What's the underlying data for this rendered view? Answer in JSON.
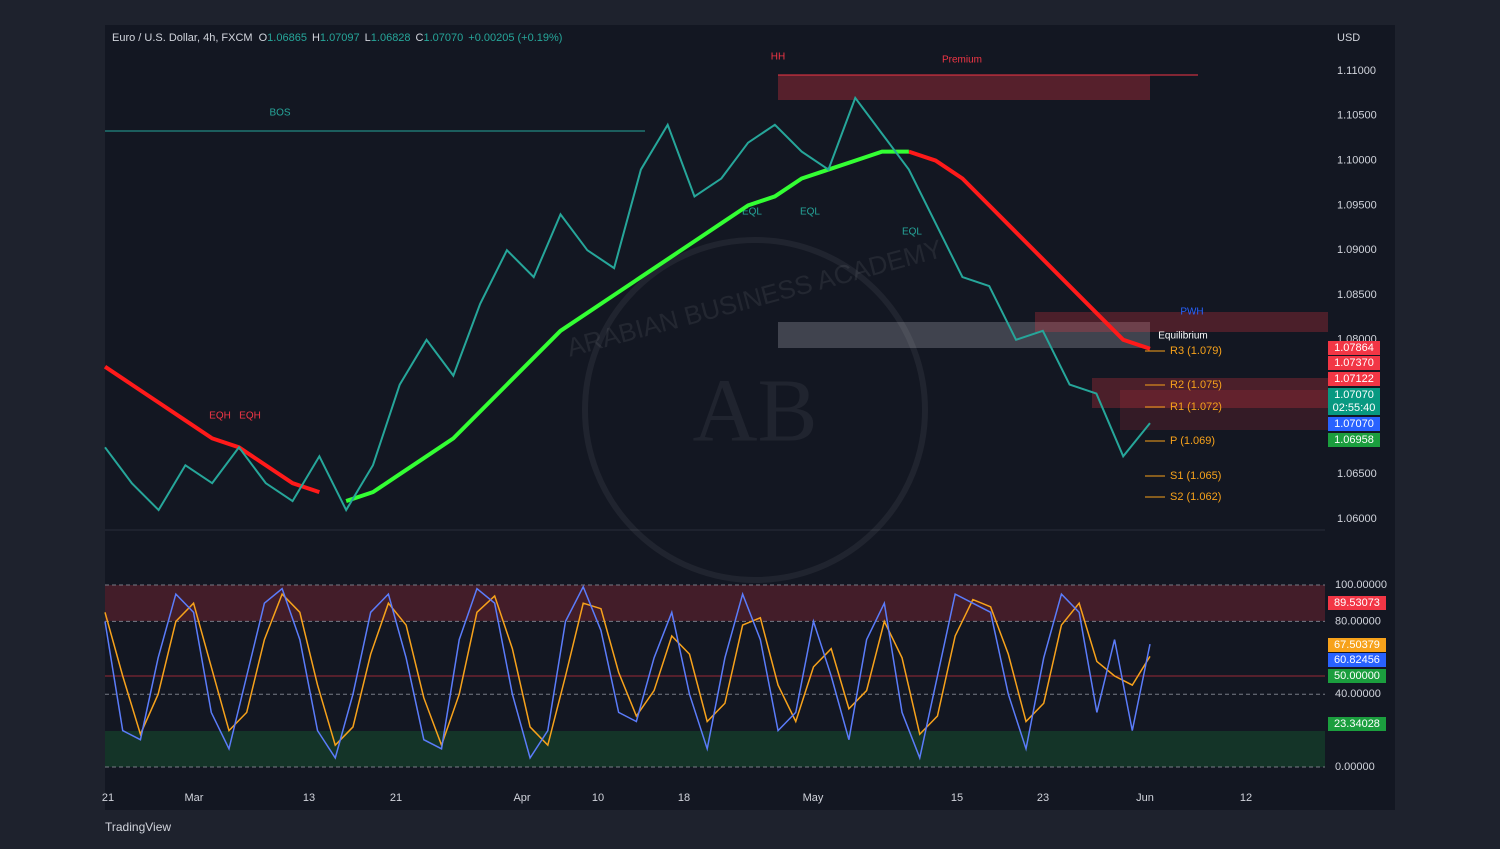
{
  "header": {
    "symbol": "Euro / U.S. Dollar, 4h, FXCM",
    "ohlc": [
      {
        "key": "O",
        "value": "1.06865"
      },
      {
        "key": "H",
        "value": "1.07097"
      },
      {
        "key": "L",
        "value": "1.06828"
      },
      {
        "key": "C",
        "value": "1.07070"
      }
    ],
    "change": "+0.00205 (+0.19%)"
  },
  "currency": "USD",
  "price_ticks": [
    "1.11000",
    "1.10500",
    "1.10000",
    "1.09500",
    "1.09000",
    "1.08500",
    "1.08000",
    "1.06500",
    "1.06000"
  ],
  "price_badges": [
    {
      "text": "1.07864",
      "color": "#f23645"
    },
    {
      "text": "1.07370",
      "color": "#f23645"
    },
    {
      "text": "1.07122",
      "color": "#f23645"
    },
    {
      "text": "1.07070",
      "color": "#089981"
    },
    {
      "text": "02:55:40",
      "color": "#089981"
    },
    {
      "text": "1.07070",
      "color": "#2962ff"
    },
    {
      "text": "1.06958",
      "color": "#1b9e3e"
    }
  ],
  "osc_ticks": [
    "100.00000",
    "80.00000",
    "40.00000",
    "0.00000"
  ],
  "osc_badges": [
    {
      "text": "89.53073",
      "color": "#f23645"
    },
    {
      "text": "67.50379",
      "color": "#f7a21b"
    },
    {
      "text": "60.82456",
      "color": "#2962ff"
    },
    {
      "text": "50.00000",
      "color": "#1b9e3e"
    },
    {
      "text": "23.34028",
      "color": "#1b9e3e"
    }
  ],
  "x_labels": [
    "21",
    "Mar",
    "13",
    "21",
    "Apr",
    "10",
    "18",
    "May",
    "15",
    "23",
    "Jun",
    "12"
  ],
  "annotations": [
    "HH",
    "Premium",
    "BOS",
    "EQH",
    "EQH",
    "EQL",
    "EQL",
    "EQL",
    "Equilibrium",
    "PWH"
  ],
  "pivots": [
    "R3 (1.079)",
    "R2 (1.075)",
    "R1 (1.072)",
    "P (1.069)",
    "S1 (1.065)",
    "S2 (1.062)"
  ],
  "watermark": {
    "initials": "AB",
    "name": "ARABIAN BUSINESS ACADEMY"
  },
  "price": {
    "close": [
      1.068,
      1.064,
      1.061,
      1.066,
      1.064,
      1.068,
      1.064,
      1.062,
      1.067,
      1.061,
      1.066,
      1.075,
      1.08,
      1.076,
      1.084,
      1.09,
      1.087,
      1.094,
      1.09,
      1.088,
      1.099,
      1.104,
      1.096,
      1.098,
      1.102,
      1.104,
      1.101,
      1.099,
      1.107,
      1.103,
      1.099,
      1.093,
      1.087,
      1.086,
      1.08,
      1.081,
      1.075,
      1.074,
      1.067,
      1.0707
    ],
    "ma_green": [
      null,
      null,
      null,
      null,
      null,
      null,
      null,
      null,
      null,
      1.062,
      1.063,
      1.065,
      1.067,
      1.069,
      1.072,
      1.075,
      1.078,
      1.081,
      1.083,
      1.085,
      1.087,
      1.089,
      1.091,
      1.093,
      1.095,
      1.096,
      1.098,
      1.099,
      1.1,
      1.101,
      1.101,
      null,
      null,
      null,
      null,
      null,
      null,
      null,
      null,
      null
    ],
    "ma_red": [
      1.077,
      1.075,
      1.073,
      1.071,
      1.069,
      1.068,
      1.066,
      1.064,
      1.063,
      null,
      null,
      null,
      null,
      null,
      null,
      null,
      null,
      null,
      null,
      null,
      null,
      null,
      null,
      null,
      null,
      null,
      null,
      null,
      null,
      null,
      1.101,
      1.1,
      1.098,
      1.095,
      1.092,
      1.089,
      1.086,
      1.083,
      1.08,
      1.079
    ]
  },
  "stoch": {
    "k": [
      80,
      20,
      15,
      60,
      95,
      85,
      30,
      10,
      50,
      90,
      98,
      70,
      20,
      5,
      40,
      85,
      95,
      60,
      15,
      10,
      70,
      98,
      90,
      40,
      5,
      20,
      80,
      99,
      75,
      30,
      25,
      60,
      85,
      40,
      10,
      60,
      95,
      70,
      20,
      30,
      80,
      50,
      15,
      70,
      90,
      30,
      5,
      50,
      95,
      90,
      85,
      40,
      10,
      60,
      95,
      85,
      30,
      70,
      20,
      67.5
    ],
    "d": [
      85,
      50,
      18,
      40,
      80,
      90,
      55,
      20,
      30,
      70,
      95,
      85,
      45,
      12,
      22,
      62,
      90,
      78,
      38,
      12,
      40,
      85,
      94,
      65,
      22,
      12,
      50,
      90,
      87,
      52,
      28,
      42,
      72,
      62,
      25,
      35,
      78,
      82,
      45,
      25,
      55,
      65,
      32,
      42,
      80,
      60,
      18,
      28,
      72,
      92,
      88,
      62,
      25,
      35,
      78,
      90,
      58,
      50,
      45,
      60.8
    ]
  },
  "footer": "TradingView"
}
